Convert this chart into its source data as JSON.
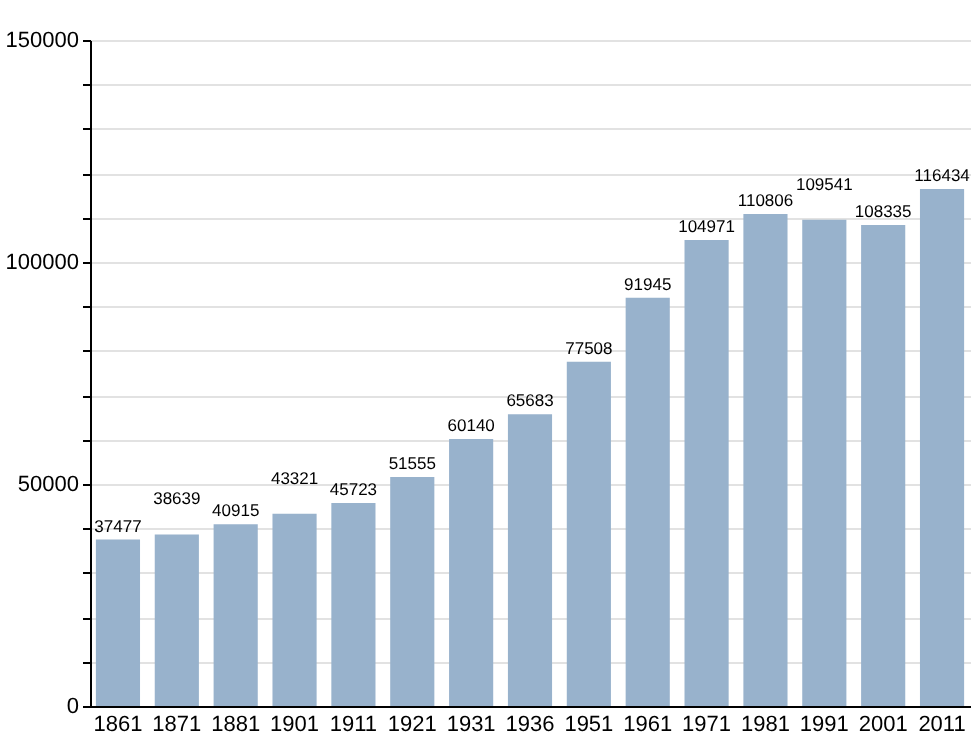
{
  "chart_data": {
    "type": "bar",
    "categories": [
      "1861",
      "1871",
      "1881",
      "1901",
      "1911",
      "1921",
      "1931",
      "1936",
      "1951",
      "1961",
      "1971",
      "1981",
      "1991",
      "2001",
      "2011"
    ],
    "values": [
      37477,
      38639,
      40915,
      43321,
      45723,
      51555,
      60140,
      65683,
      77508,
      91945,
      104971,
      110806,
      109541,
      108335,
      116434
    ],
    "color": "#98b2cc",
    "ylim": [
      0,
      150000
    ],
    "yticks": [
      0,
      {
        "value": 10000,
        "label": null
      },
      {
        "value": 20000,
        "label": null
      },
      {
        "value": 30000,
        "label": null
      },
      {
        "value": 40000,
        "label": null
      },
      50000,
      {
        "value": 60000,
        "label": null
      },
      {
        "value": 70000,
        "label": null
      },
      {
        "value": 80000,
        "label": null
      },
      {
        "value": 90000,
        "label": null
      },
      100000,
      {
        "value": 110000,
        "label": null
      },
      {
        "value": 120000,
        "label": null
      },
      {
        "value": 130000,
        "label": null
      },
      {
        "value": 140000,
        "label": null
      },
      150000
    ],
    "grid": true,
    "data_labels": true
  }
}
